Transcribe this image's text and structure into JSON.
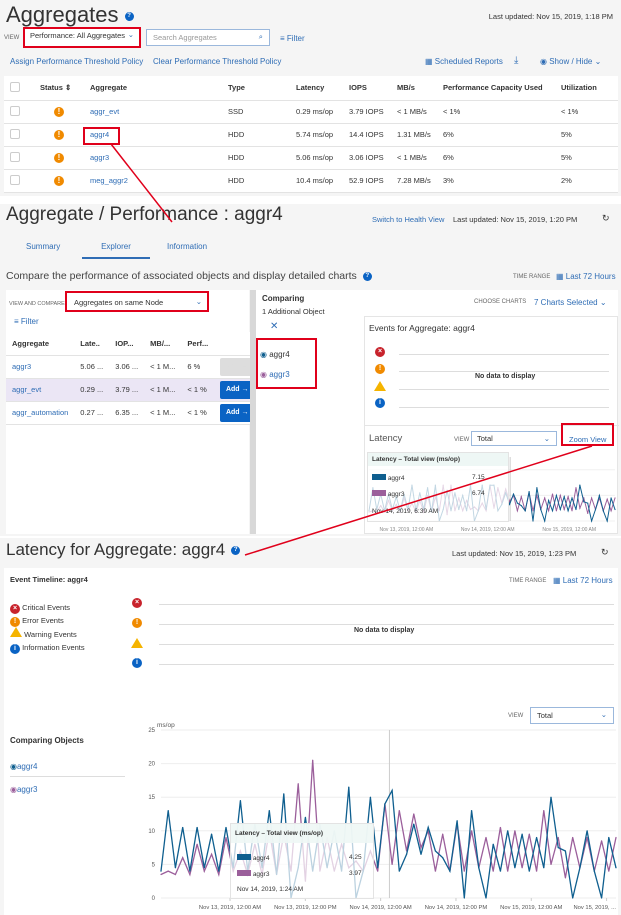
{
  "panel1": {
    "title": "Aggregates",
    "last_updated": "Last updated: Nov 15, 2019, 1:18 PM",
    "view_label": "VIEW",
    "view_value": "Performance: All Aggregates",
    "search_placeholder": "Search Aggregates",
    "filter": "Filter",
    "assign_policy": "Assign Performance Threshold Policy",
    "clear_policy": "Clear Performance Threshold Policy",
    "scheduled_reports": "Scheduled Reports",
    "show_hide": "Show / Hide",
    "columns": [
      "Status",
      "Aggregate",
      "Type",
      "Latency",
      "IOPS",
      "MB/s",
      "Performance Capacity Used",
      "Utilization"
    ],
    "rows": [
      {
        "name": "aggr_evt",
        "type": "SSD",
        "latency": "0.29 ms/op",
        "iops": "3.79 IOPS",
        "mbps": "< 1 MB/s",
        "pcu": "< 1%",
        "util": "< 1%"
      },
      {
        "name": "aggr4",
        "type": "HDD",
        "latency": "5.74 ms/op",
        "iops": "14.4 IOPS",
        "mbps": "1.31 MB/s",
        "pcu": "6%",
        "util": "5%"
      },
      {
        "name": "aggr3",
        "type": "HDD",
        "latency": "5.06 ms/op",
        "iops": "3.06 IOPS",
        "mbps": "< 1 MB/s",
        "pcu": "6%",
        "util": "5%"
      },
      {
        "name": "meg_aggr2",
        "type": "HDD",
        "latency": "10.4 ms/op",
        "iops": "52.9 IOPS",
        "mbps": "7.28 MB/s",
        "pcu": "3%",
        "util": "2%"
      }
    ]
  },
  "panel2": {
    "title": "Aggregate / Performance : aggr4",
    "switch_view": "Switch to Health View",
    "last_updated": "Last updated: Nov 15, 2019, 1:20 PM",
    "tabs": [
      "Summary",
      "Explorer",
      "Information"
    ],
    "active_tab": "Explorer",
    "description": "Compare the performance of associated objects and display detailed charts",
    "time_range_label": "TIME RANGE",
    "time_range": "Last 72 Hours",
    "view_compare_label": "VIEW AND COMPARE",
    "view_compare_value": "Aggregates on same Node",
    "filter": "Filter",
    "columns": [
      "Aggregate",
      "Late..",
      "IOP...",
      "MB/...",
      "Perf..."
    ],
    "rows": [
      {
        "name": "aggr3",
        "lat": "5.06 ...",
        "iops": "3.06 ...",
        "mb": "< 1 M...",
        "perf": "6 %",
        "add": "Add →",
        "enabled": false
      },
      {
        "name": "aggr_evt",
        "lat": "0.29 ...",
        "iops": "3.79 ...",
        "mb": "< 1 M...",
        "perf": "< 1 %",
        "add": "Add →",
        "enabled": true
      },
      {
        "name": "aggr_automation",
        "lat": "0.27 ...",
        "iops": "6.35 ...",
        "mb": "< 1 M...",
        "perf": "< 1 %",
        "add": "Add →",
        "enabled": true
      }
    ],
    "comparing_title": "Comparing",
    "comparing_sub": "1 Additional Object",
    "compared": [
      "aggr4",
      "aggr3"
    ],
    "choose_charts_label": "CHOOSE CHARTS",
    "charts_selected": "7 Charts Selected",
    "events_title": "Events for Aggregate: aggr4",
    "no_data": "No data to display",
    "latency_title": "Latency",
    "view_label": "VIEW",
    "view_value": "Total",
    "zoom_view": "Zoom View",
    "tooltip": {
      "title": "Latency – Total view (ms/op)",
      "rows": [
        {
          "name": "aggr4",
          "value": "7.15"
        },
        {
          "name": "aggr3",
          "value": "6.74"
        }
      ],
      "time": "Nov 14, 2019, 6:39 AM"
    },
    "x_ticks": [
      "Nov 13, 2019, 12:00 AM",
      "Nov 14, 2019, 12:00 AM",
      "Nov 15, 2019, 12:00 AM"
    ]
  },
  "panel3": {
    "title": "Latency for Aggregate: aggr4",
    "last_updated": "Last updated: Nov 15, 2019, 1:23 PM",
    "event_timeline": "Event Timeline: aggr4",
    "time_range_label": "TIME RANGE",
    "time_range": "Last 72 Hours",
    "legend": [
      "Critical Events",
      "Error Events",
      "Warning Events",
      "Information Events"
    ],
    "no_data": "No data to display",
    "view_label": "VIEW",
    "view_value": "Total",
    "comparing_objects": "Comparing Objects",
    "objects": [
      "aggr4",
      "aggr3"
    ],
    "tooltip": {
      "title": "Latency – Total view (ms/op)",
      "rows": [
        {
          "name": "aggr4",
          "value": "4.25"
        },
        {
          "name": "aggr3",
          "value": "3.97"
        }
      ],
      "time": "Nov 14, 2019, 1:24 AM"
    }
  },
  "colors": {
    "aggr4": "#0f5f8f",
    "aggr3": "#9b5f9b",
    "annotation": "#e0001b",
    "link": "#2f6db5"
  },
  "chart_data": {
    "type": "line",
    "title": "",
    "ylabel": "ms/op",
    "ylim": [
      0,
      25
    ],
    "y_ticks": [
      0,
      5,
      10,
      15,
      20,
      25
    ],
    "xlim": [
      "Nov 12, 2019, 1:00 PM",
      "Nov 15, 2019, 1:30 PM"
    ],
    "x_ticks": [
      "Nov 13, 2019, 12:00 AM",
      "Nov 13, 2019, 12:00 PM",
      "Nov 14, 2019, 12:00 AM",
      "Nov 14, 2019, 12:00 PM",
      "Nov 15, 2019, 12:00 AM",
      "Nov 15, 2019, ..."
    ],
    "grid": true,
    "series": [
      {
        "name": "aggr4",
        "color": "#0f5f8f",
        "values": [
          4,
          13,
          4.5,
          10.5,
          4,
          10.5,
          4.5,
          9.5,
          4,
          10.5,
          4.5,
          14.5,
          4,
          11,
          4.5,
          13,
          3.5,
          15.5,
          0,
          4.5,
          12,
          4,
          11,
          4.5,
          10,
          4,
          16.5,
          0,
          4,
          15,
          4.5,
          14,
          16,
          4,
          6.5,
          11,
          6.5,
          10.5,
          7,
          6,
          4,
          11.5,
          0,
          13,
          4.5,
          0,
          8,
          4,
          10,
          4.5,
          9.5,
          4,
          9,
          4.5,
          15,
          7.5,
          7,
          0,
          4.5,
          10,
          4,
          0,
          9,
          4.5
        ]
      },
      {
        "name": "aggr3",
        "color": "#9b5f9b",
        "values": [
          3.5,
          4,
          3.5,
          6,
          3.5,
          8,
          4,
          6.5,
          3.5,
          9,
          4,
          7,
          3.5,
          8,
          3.5,
          10,
          3.5,
          9.5,
          4,
          17,
          2.5,
          20.5,
          4,
          9,
          4,
          8,
          4.5,
          5.5,
          4,
          7,
          4,
          14,
          5,
          13,
          7,
          12.5,
          7.5,
          10,
          4,
          9.5,
          4,
          11,
          4,
          10,
          4.5,
          9,
          4,
          10.5,
          4,
          10,
          4.5,
          9.5,
          4,
          13,
          5,
          9,
          3,
          9,
          4.5,
          9,
          4,
          8.5,
          4,
          9
        ]
      }
    ]
  }
}
